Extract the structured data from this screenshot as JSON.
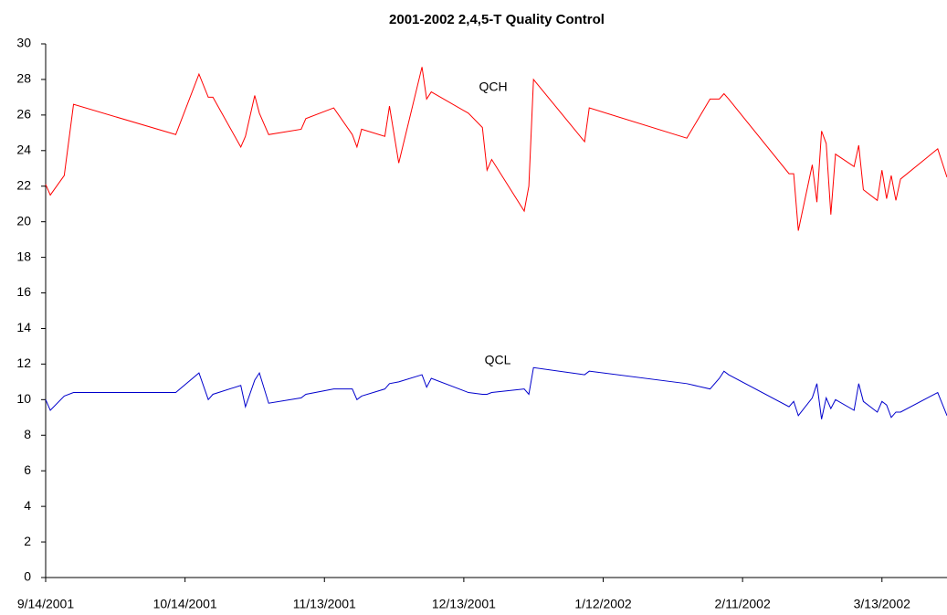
{
  "chart_data": {
    "type": "line",
    "title": "2001-2002 2,4,5-T Quality Control",
    "x": [
      "2001-09-14",
      "2001-09-15",
      "2001-09-18",
      "2001-09-20",
      "2001-10-12",
      "2001-10-17",
      "2001-10-19",
      "2001-10-20",
      "2001-10-26",
      "2001-10-27",
      "2001-10-29",
      "2001-10-30",
      "2001-11-01",
      "2001-11-08",
      "2001-11-09",
      "2001-11-15",
      "2001-11-19",
      "2001-11-20",
      "2001-11-21",
      "2001-11-26",
      "2001-11-27",
      "2001-11-29",
      "2001-12-04",
      "2001-12-05",
      "2001-12-06",
      "2001-12-14",
      "2001-12-17",
      "2001-12-18",
      "2001-12-19",
      "2001-12-26",
      "2001-12-27",
      "2001-12-28",
      "2002-01-08",
      "2002-01-09",
      "2002-01-30",
      "2002-02-04",
      "2002-02-06",
      "2002-02-07",
      "2002-02-08",
      "2002-02-21",
      "2002-02-22",
      "2002-02-23",
      "2002-02-26",
      "2002-02-27",
      "2002-02-28",
      "2002-03-01",
      "2002-03-02",
      "2002-03-03",
      "2002-03-07",
      "2002-03-08",
      "2002-03-09",
      "2002-03-12",
      "2002-03-13",
      "2002-03-14",
      "2002-03-15",
      "2002-03-16",
      "2002-03-17",
      "2002-03-25",
      "2002-03-27"
    ],
    "series": [
      {
        "name": "QCH",
        "color": "#ff0000",
        "values": [
          22.1,
          21.5,
          22.6,
          26.6,
          24.9,
          28.3,
          27.0,
          27.0,
          24.2,
          24.8,
          27.1,
          26.1,
          24.9,
          25.2,
          25.8,
          26.4,
          24.9,
          24.2,
          25.2,
          24.8,
          26.5,
          23.3,
          28.7,
          26.9,
          27.3,
          26.1,
          25.3,
          22.9,
          23.5,
          20.6,
          22.0,
          28.0,
          24.5,
          26.4,
          24.7,
          26.9,
          26.9,
          27.2,
          26.9,
          22.7,
          22.7,
          19.5,
          23.2,
          21.1,
          25.1,
          24.4,
          20.4,
          23.8,
          23.1,
          24.3,
          21.8,
          21.2,
          22.9,
          21.3,
          22.6,
          21.2,
          22.4,
          24.1,
          22.5
        ]
      },
      {
        "name": "QCL",
        "color": "#0000cc",
        "values": [
          10.0,
          9.4,
          10.2,
          10.4,
          10.4,
          11.5,
          10.0,
          10.3,
          10.8,
          9.6,
          11.1,
          11.5,
          9.8,
          10.1,
          10.3,
          10.6,
          10.6,
          10.0,
          10.2,
          10.6,
          10.9,
          11.0,
          11.4,
          10.7,
          11.2,
          10.4,
          10.3,
          10.3,
          10.4,
          10.6,
          10.3,
          11.8,
          11.4,
          11.6,
          10.9,
          10.6,
          11.2,
          11.6,
          11.4,
          9.6,
          9.9,
          9.1,
          10.1,
          10.9,
          8.9,
          10.1,
          9.5,
          10.0,
          9.4,
          10.9,
          9.9,
          9.3,
          9.9,
          9.7,
          9.0,
          9.3,
          9.3,
          10.4,
          9.1
        ]
      }
    ],
    "annotations": [
      "QCH",
      "QCL"
    ],
    "xlim": [
      "2001-09-14",
      "2002-03-27"
    ],
    "xticks": [
      {
        "value": "2001-09-14",
        "label": "9/14/2001"
      },
      {
        "value": "2001-10-14",
        "label": "10/14/2001"
      },
      {
        "value": "2001-11-13",
        "label": "11/13/2001"
      },
      {
        "value": "2001-12-13",
        "label": "12/13/2001"
      },
      {
        "value": "2002-01-12",
        "label": "1/12/2002"
      },
      {
        "value": "2002-02-11",
        "label": "2/11/2002"
      },
      {
        "value": "2002-03-13",
        "label": "3/13/2002"
      }
    ],
    "ylim": [
      0,
      30
    ],
    "yticks": [
      0,
      2,
      4,
      6,
      8,
      10,
      12,
      14,
      16,
      18,
      20,
      22,
      24,
      26,
      28,
      30
    ],
    "grid": false
  }
}
